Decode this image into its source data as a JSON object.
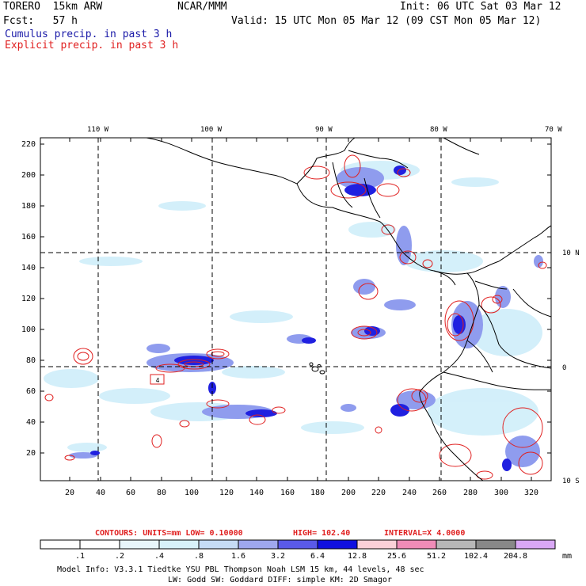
{
  "header": {
    "model": "TORERO  15km ARW",
    "org": "NCAR/MMM",
    "init": "Init: 06 UTC Sat 03 Mar 12",
    "fcst": "Fcst:   57 h",
    "valid": "Valid: 15 UTC Mon 05 Mar 12 (09 CST Mon 05 Mar 12)",
    "line_cumulus": "Cumulus precip. in past 3 h",
    "line_explicit": "Explicit precip. in past 3 h"
  },
  "map": {
    "lon_labels": [
      "110 W",
      "100 W",
      "90 W",
      "80 W",
      "70 W"
    ],
    "lat_labels": [
      "10 N",
      "0",
      "10 S"
    ],
    "y_ticks": [
      "220",
      "200",
      "180",
      "160",
      "140",
      "120",
      "100",
      "80",
      "60",
      "40",
      "20"
    ],
    "x_ticks": [
      "20",
      "40",
      "60",
      "80",
      "100",
      "120",
      "140",
      "160",
      "180",
      "200",
      "220",
      "240",
      "260",
      "280",
      "300",
      "320"
    ],
    "domain_label": "4"
  },
  "legend": {
    "contours": "CONTOURS:  UNITS=mm  LOW= 0.10000",
    "high": "HIGH=  102.40",
    "interval": "INTERVAL=X  4.0000",
    "values": [
      ".1",
      ".2",
      ".4",
      ".8",
      "1.6",
      "3.2",
      "6.4",
      "12.8",
      "25.6",
      "51.2",
      "102.4",
      "204.8"
    ],
    "units": "mm",
    "colors": [
      "#ffffff",
      "#ffffff",
      "#e8f6fb",
      "#d8f2fa",
      "#c6dcf5",
      "#9fa8ee",
      "#5a5ae8",
      "#1010e0",
      "#fbd0d8",
      "#f08cb8",
      "#b8b8b8",
      "#888888",
      "#d9a8f5"
    ]
  },
  "footer": {
    "line1": "Model Info: V3.3.1   Tiedtke YSU PBL  Thompson    Noah LSM  15 km,   44 levels,   48 sec",
    "line2": "LW: Godd SW: Goddard DIFF: simple KM: 2D Smagor"
  },
  "colors": {
    "cumulus": "#1a1aa8",
    "explicit": "#e02020",
    "coast": "#000000"
  }
}
